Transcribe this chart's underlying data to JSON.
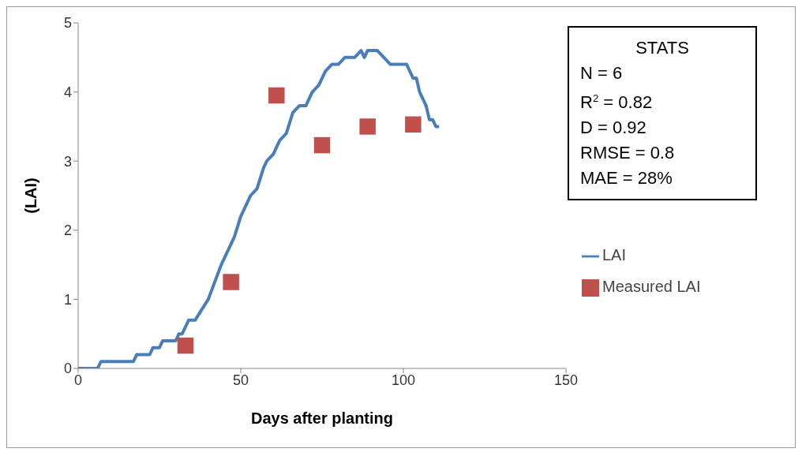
{
  "chart_data": {
    "type": "line",
    "xlabel": "Days after planting",
    "ylabel": "(LAI)",
    "xlim": [
      0,
      150
    ],
    "xticks": [
      0,
      50,
      100,
      150
    ],
    "ylim": [
      0,
      5
    ],
    "yticks": [
      0,
      1,
      2,
      3,
      4,
      5
    ],
    "grid": false,
    "legend": "right",
    "series": [
      {
        "name": "LAI",
        "color": "#4a7ebb",
        "marker": "none",
        "line_style": "solid",
        "x": [
          0,
          6,
          7,
          17,
          18,
          22,
          23,
          25,
          26,
          30,
          31,
          32,
          34,
          36,
          40,
          44,
          48,
          50,
          53,
          55,
          57,
          58,
          60,
          62,
          64,
          66,
          68,
          70,
          72,
          74,
          76,
          78,
          80,
          82,
          85,
          87,
          88,
          89,
          92,
          94,
          96,
          101,
          103,
          104,
          105,
          107,
          108,
          109,
          110,
          111
        ],
        "values": [
          0,
          0,
          0.1,
          0.1,
          0.2,
          0.2,
          0.3,
          0.3,
          0.4,
          0.4,
          0.5,
          0.5,
          0.7,
          0.7,
          1.0,
          1.5,
          1.9,
          2.2,
          2.5,
          2.6,
          2.9,
          3.0,
          3.1,
          3.3,
          3.4,
          3.7,
          3.8,
          3.8,
          4.0,
          4.1,
          4.3,
          4.4,
          4.4,
          4.5,
          4.5,
          4.6,
          4.5,
          4.6,
          4.6,
          4.5,
          4.4,
          4.4,
          4.2,
          4.2,
          4.0,
          3.8,
          3.6,
          3.6,
          3.5,
          3.5
        ]
      },
      {
        "name": "Measured LAI",
        "type": "scatter",
        "color": "#c0504d",
        "marker": "square",
        "x": [
          33,
          47,
          61,
          75,
          89,
          103
        ],
        "values": [
          0.33,
          1.25,
          3.95,
          3.23,
          3.5,
          3.53
        ]
      }
    ],
    "annotations": [
      "STATS",
      "N = 6",
      "R$^{2}$ = 0.82",
      "D = 0.92",
      "RMSE = 0.8",
      "MAE = 28%"
    ]
  }
}
